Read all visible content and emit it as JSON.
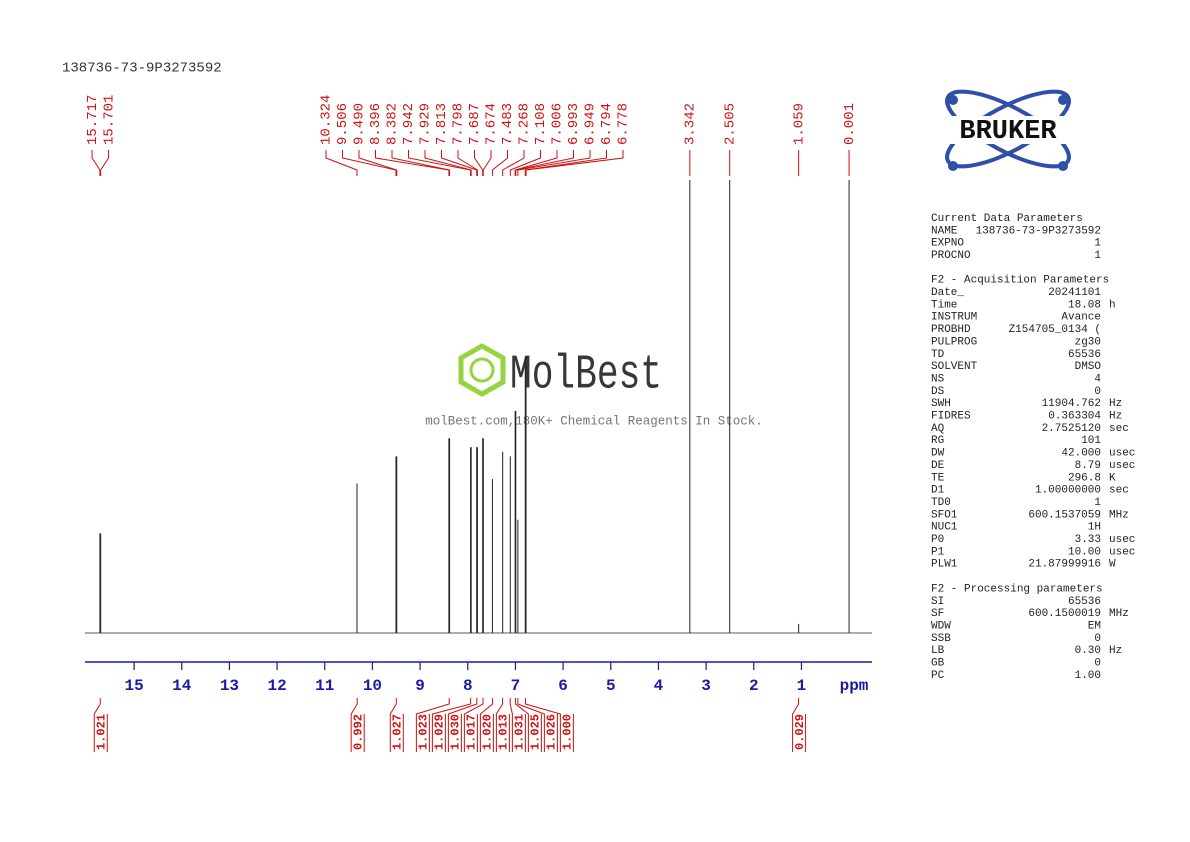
{
  "title": "138736-73-9P3273592",
  "logo": "BRUKER",
  "watermark": {
    "title": "MolBest",
    "subtitle": "molBest.com,180K+ Chemical Reagents In Stock."
  },
  "chart_data": {
    "type": "spectrum",
    "peaks": [
      15.717,
      15.701,
      10.324,
      9.506,
      {
        "value": 9.49,
        "label": "9.490"
      },
      8.396,
      8.382,
      7.942,
      7.929,
      7.813,
      7.798,
      7.687,
      7.674,
      7.483,
      7.268,
      7.108,
      7.006,
      6.993,
      6.949,
      6.794,
      6.778,
      3.342,
      2.505,
      1.059,
      0.001
    ],
    "intensities": [
      22,
      22,
      33,
      39,
      39,
      43,
      43,
      41,
      41,
      41,
      41,
      43,
      43,
      34,
      40,
      39,
      49,
      49,
      25,
      61,
      61,
      100,
      100,
      2,
      100
    ],
    "integrals": [
      1.021,
      0.992,
      1.027,
      1.023,
      1.029,
      {
        "value": 1.03,
        "label": "1.030"
      },
      1.017,
      {
        "value": 1.02,
        "label": "1.020"
      },
      1.013,
      1.031,
      1.025,
      1.026,
      {
        "value": 1,
        "label": "1.000"
      },
      0.029
    ],
    "integral_ppm": [
      15.71,
      10.32,
      9.5,
      8.39,
      7.94,
      7.81,
      7.68,
      7.48,
      7.27,
      7.11,
      7.0,
      6.95,
      6.79,
      1.06
    ],
    "xlim": [
      16.03,
      -0.48
    ],
    "xticks": [
      15,
      14,
      13,
      12,
      11,
      10,
      9,
      8,
      7,
      6,
      5,
      4,
      3,
      2,
      1
    ],
    "xlabel": "ppm",
    "color": "#222222",
    "label_color": "#cc1111",
    "tick_color": "#1a1aa8"
  },
  "parameters": [
    {
      "title": "Current Data Parameters",
      "rows": [
        [
          "NAME",
          "138736-73-9P3273592"
        ],
        [
          "EXPNO",
          "1"
        ],
        [
          "PROCNO",
          "1"
        ]
      ]
    },
    {
      "title": "F2 - Acquisition Parameters",
      "rows": [
        [
          "Date_",
          "20241101"
        ],
        [
          "Time",
          "18.08",
          "h"
        ],
        [
          "INSTRUM",
          "Avance"
        ],
        [
          "PROBHD",
          "Z154705_0134 ("
        ],
        [
          "PULPROG",
          "zg30"
        ],
        [
          "TD",
          "65536"
        ],
        [
          "SOLVENT",
          "DMSO"
        ],
        [
          "NS",
          "4"
        ],
        [
          "DS",
          "0"
        ],
        [
          "SWH",
          "11904.762",
          "Hz"
        ],
        [
          "FIDRES",
          "0.363304",
          "Hz"
        ],
        [
          "AQ",
          "2.7525120",
          "sec"
        ],
        [
          "RG",
          "101"
        ],
        [
          "DW",
          "42.000",
          "usec"
        ],
        [
          "DE",
          "8.79",
          "usec"
        ],
        [
          "TE",
          "296.8",
          "K"
        ],
        [
          "D1",
          "1.00000000",
          "sec"
        ],
        [
          "TD0",
          "1"
        ],
        [
          "SFO1",
          "600.1537059",
          "MHz"
        ],
        [
          "NUC1",
          "1H"
        ],
        [
          "P0",
          "3.33",
          "usec"
        ],
        [
          "P1",
          "10.00",
          "usec"
        ],
        [
          "PLW1",
          "21.87999916",
          "W"
        ]
      ]
    },
    {
      "title": "F2 - Processing parameters",
      "rows": [
        [
          "SI",
          "65536"
        ],
        [
          "SF",
          "600.1500019",
          "MHz"
        ],
        [
          "WDW",
          "EM"
        ],
        [
          "SSB",
          "0"
        ],
        [
          "LB",
          "0.30",
          "Hz"
        ],
        [
          "GB",
          "0"
        ],
        [
          "PC",
          "1.00"
        ]
      ]
    }
  ]
}
